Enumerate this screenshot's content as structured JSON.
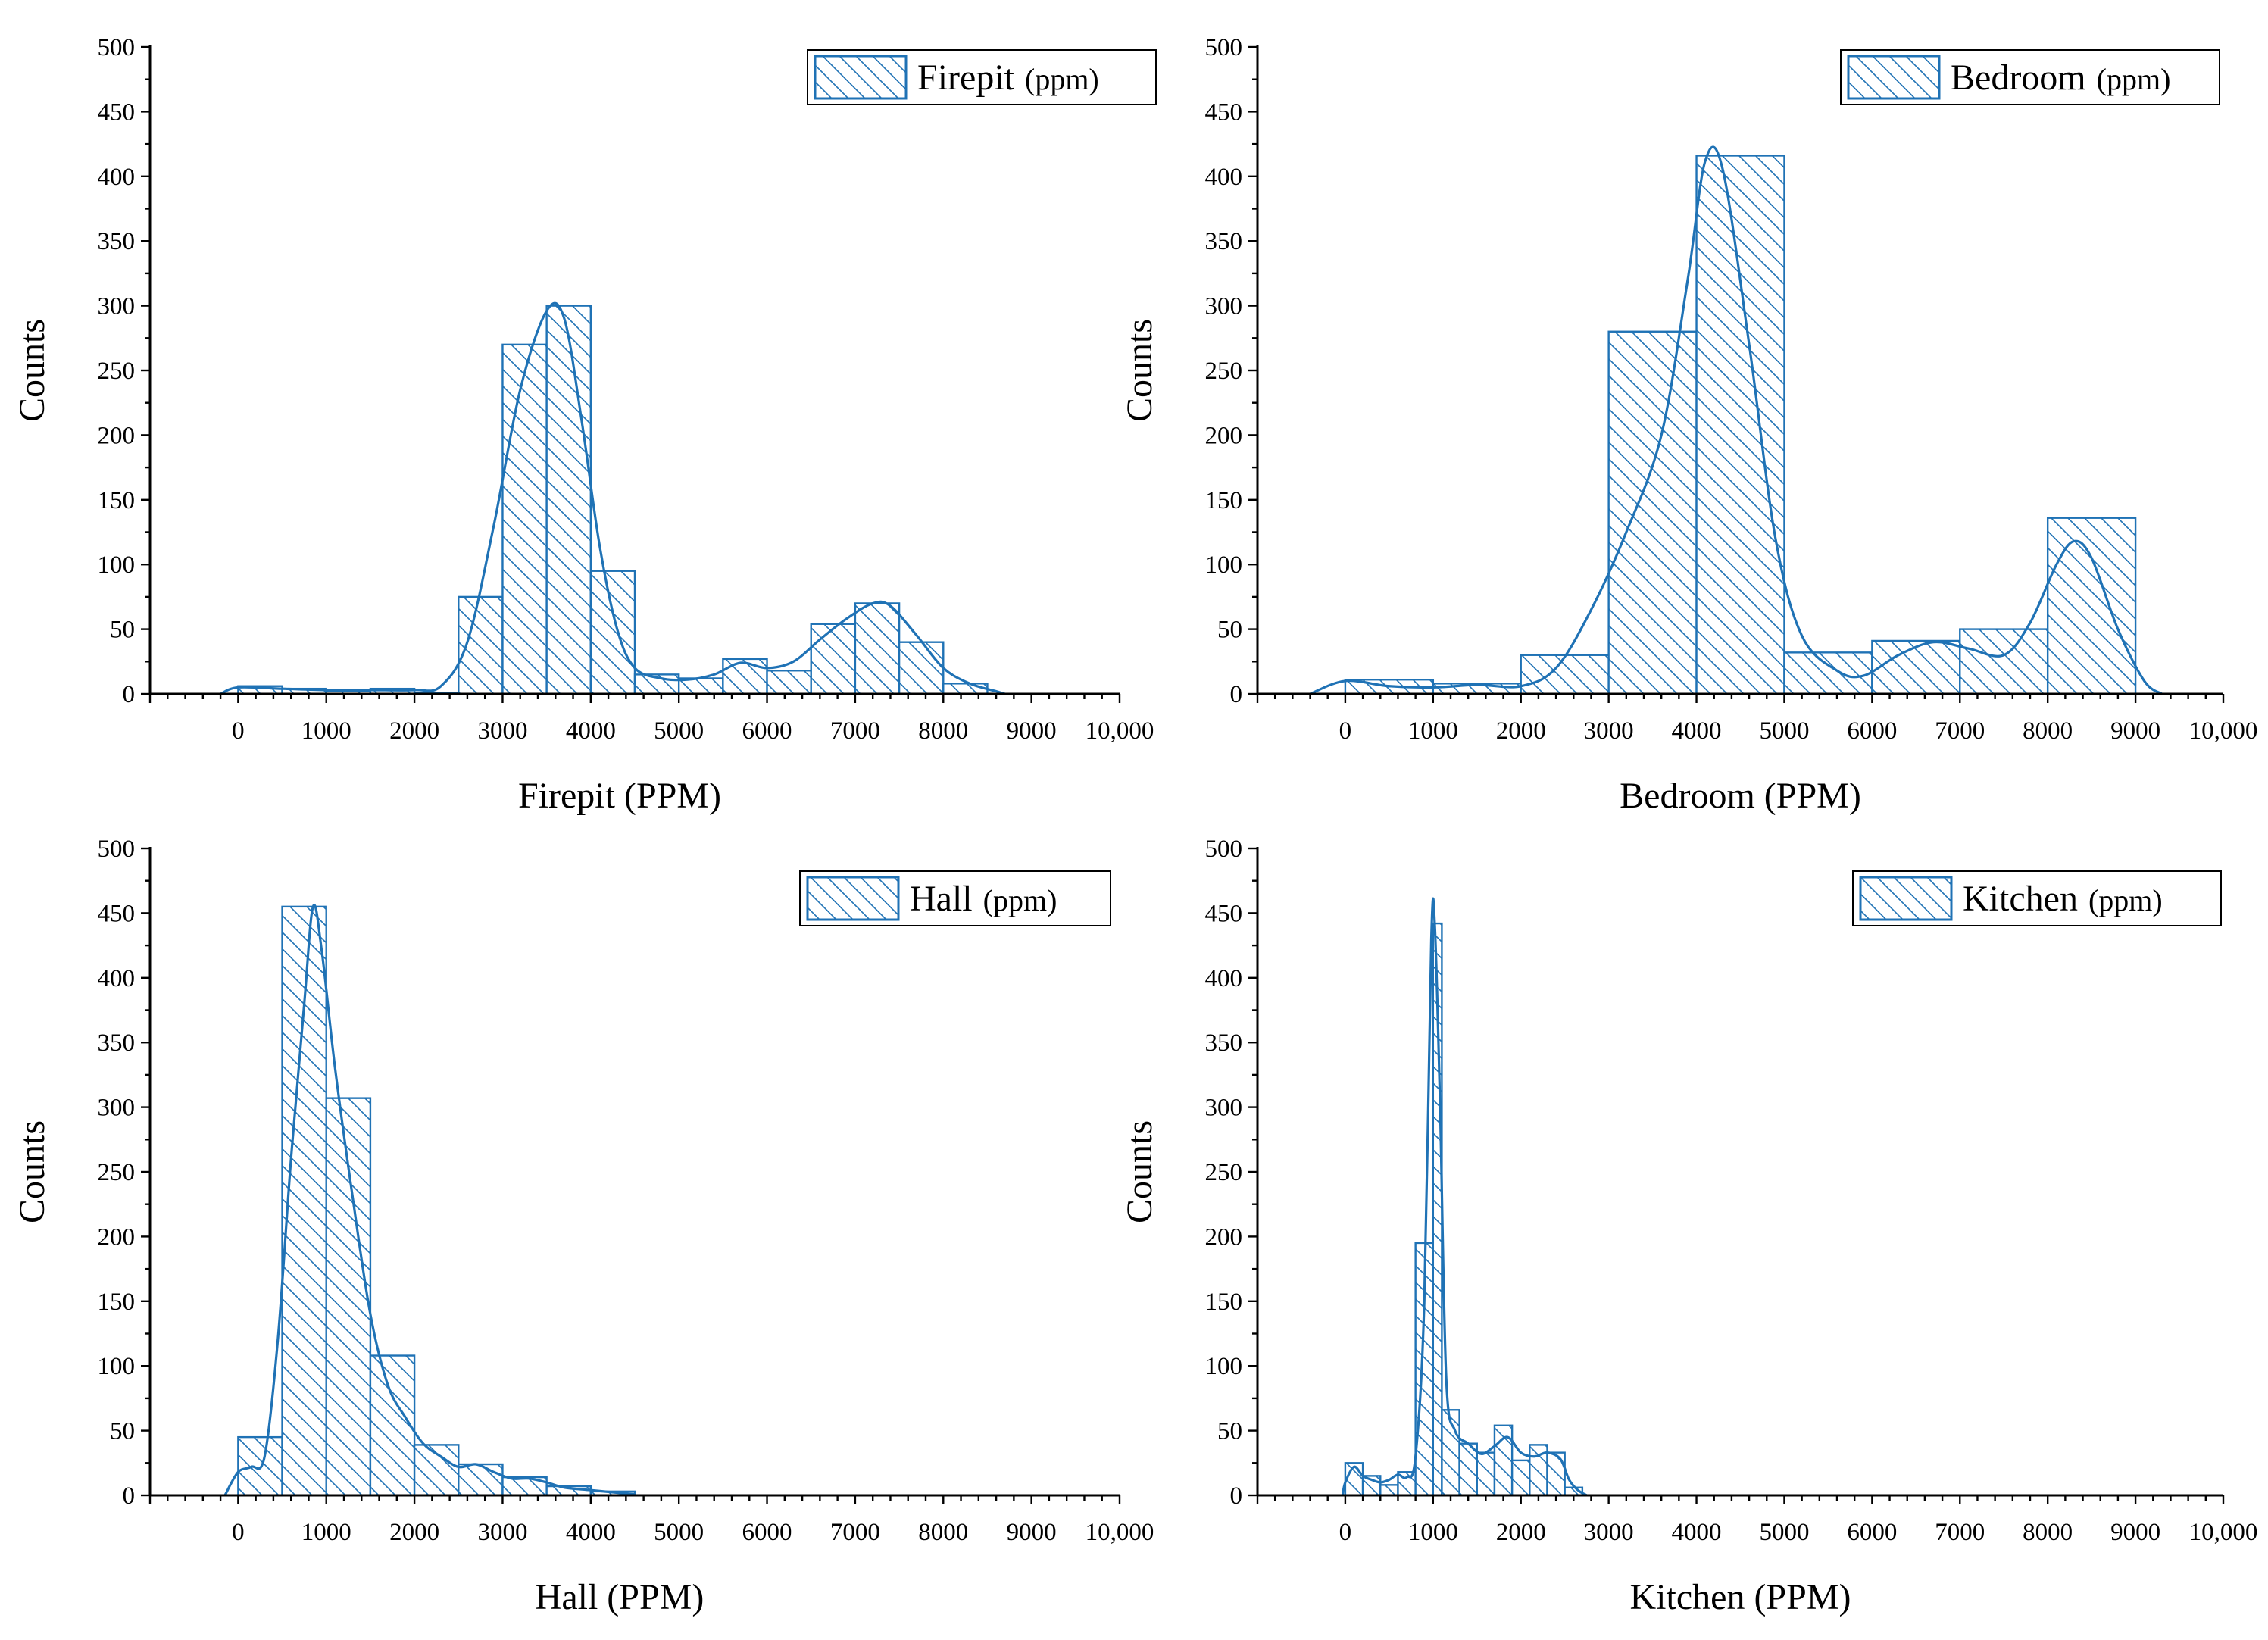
{
  "colors": {
    "series": "#1f72b5",
    "axis": "#000000",
    "background": "#ffffff"
  },
  "chart_data": [
    {
      "type": "bar",
      "subtype": "histogram with kernel density curve",
      "id": "firepit",
      "legend": {
        "label": "Firepit",
        "unit": "(ppm)",
        "position": "top-right"
      },
      "xlabel": "Firepit (PPM)",
      "ylabel": "Counts",
      "xlim": [
        -1000,
        10000
      ],
      "ylim": [
        0,
        500
      ],
      "xticks": [
        "0",
        "1000",
        "2000",
        "3000",
        "4000",
        "5000",
        "6000",
        "7000",
        "8000",
        "9000",
        "10,000"
      ],
      "yticks": [
        "0",
        "50",
        "100",
        "150",
        "200",
        "250",
        "300",
        "350",
        "400",
        "450",
        "500"
      ],
      "bins": [
        {
          "start": 0,
          "end": 500,
          "count": 6
        },
        {
          "start": 500,
          "end": 1000,
          "count": 4
        },
        {
          "start": 1000,
          "end": 1500,
          "count": 2
        },
        {
          "start": 1500,
          "end": 2000,
          "count": 4
        },
        {
          "start": 2000,
          "end": 2500,
          "count": 1
        },
        {
          "start": 2500,
          "end": 3000,
          "count": 75
        },
        {
          "start": 3000,
          "end": 3500,
          "count": 270
        },
        {
          "start": 3500,
          "end": 4000,
          "count": 300
        },
        {
          "start": 4000,
          "end": 4500,
          "count": 95
        },
        {
          "start": 4500,
          "end": 5000,
          "count": 15
        },
        {
          "start": 5000,
          "end": 5500,
          "count": 12
        },
        {
          "start": 5500,
          "end": 6000,
          "count": 27
        },
        {
          "start": 6000,
          "end": 6500,
          "count": 18
        },
        {
          "start": 6500,
          "end": 7000,
          "count": 54
        },
        {
          "start": 7000,
          "end": 7500,
          "count": 70
        },
        {
          "start": 7500,
          "end": 8000,
          "count": 40
        },
        {
          "start": 8000,
          "end": 8500,
          "count": 8
        }
      ],
      "curve": [
        [
          -200,
          0
        ],
        [
          0,
          5
        ],
        [
          500,
          4
        ],
        [
          1000,
          3
        ],
        [
          1500,
          3
        ],
        [
          2000,
          3
        ],
        [
          2300,
          6
        ],
        [
          2600,
          40
        ],
        [
          2900,
          130
        ],
        [
          3200,
          235
        ],
        [
          3500,
          296
        ],
        [
          3700,
          290
        ],
        [
          3900,
          210
        ],
        [
          4100,
          115
        ],
        [
          4300,
          50
        ],
        [
          4500,
          20
        ],
        [
          4800,
          12
        ],
        [
          5100,
          11
        ],
        [
          5400,
          15
        ],
        [
          5700,
          24
        ],
        [
          6000,
          20
        ],
        [
          6300,
          25
        ],
        [
          6600,
          42
        ],
        [
          6900,
          58
        ],
        [
          7200,
          70
        ],
        [
          7400,
          68
        ],
        [
          7700,
          45
        ],
        [
          8000,
          20
        ],
        [
          8300,
          8
        ],
        [
          8600,
          2
        ],
        [
          8700,
          0
        ]
      ]
    },
    {
      "type": "bar",
      "subtype": "histogram with kernel density curve",
      "id": "bedroom",
      "legend": {
        "label": "Bedroom",
        "unit": "(ppm)",
        "position": "top-right"
      },
      "xlabel": "Bedroom (PPM)",
      "ylabel": "Counts",
      "xlim": [
        -1000,
        10000
      ],
      "ylim": [
        0,
        500
      ],
      "xticks": [
        "0",
        "1000",
        "2000",
        "3000",
        "4000",
        "5000",
        "6000",
        "7000",
        "8000",
        "9000",
        "10,000"
      ],
      "yticks": [
        "0",
        "50",
        "100",
        "150",
        "200",
        "250",
        "300",
        "350",
        "400",
        "450",
        "500"
      ],
      "bins": [
        {
          "start": 0,
          "end": 1000,
          "count": 11
        },
        {
          "start": 1000,
          "end": 2000,
          "count": 8
        },
        {
          "start": 2000,
          "end": 3000,
          "count": 30
        },
        {
          "start": 3000,
          "end": 4000,
          "count": 280
        },
        {
          "start": 4000,
          "end": 5000,
          "count": 416
        },
        {
          "start": 5000,
          "end": 6000,
          "count": 32
        },
        {
          "start": 6000,
          "end": 7000,
          "count": 41
        },
        {
          "start": 7000,
          "end": 8000,
          "count": 50
        },
        {
          "start": 8000,
          "end": 9000,
          "count": 136
        }
      ],
      "curve": [
        [
          -400,
          0
        ],
        [
          0,
          10
        ],
        [
          500,
          6
        ],
        [
          1000,
          5
        ],
        [
          1500,
          7
        ],
        [
          2000,
          6
        ],
        [
          2400,
          20
        ],
        [
          2800,
          65
        ],
        [
          3200,
          125
        ],
        [
          3600,
          200
        ],
        [
          3900,
          320
        ],
        [
          4100,
          412
        ],
        [
          4300,
          405
        ],
        [
          4600,
          270
        ],
        [
          4900,
          120
        ],
        [
          5200,
          45
        ],
        [
          5600,
          18
        ],
        [
          5900,
          14
        ],
        [
          6300,
          30
        ],
        [
          6700,
          40
        ],
        [
          7100,
          35
        ],
        [
          7500,
          30
        ],
        [
          7800,
          55
        ],
        [
          8100,
          100
        ],
        [
          8300,
          118
        ],
        [
          8500,
          105
        ],
        [
          8800,
          50
        ],
        [
          9100,
          10
        ],
        [
          9300,
          0
        ]
      ]
    },
    {
      "type": "bar",
      "subtype": "histogram with kernel density curve",
      "id": "hall",
      "legend": {
        "label": "Hall",
        "unit": "(ppm)",
        "position": "top-right"
      },
      "xlabel": "Hall (PPM)",
      "ylabel": "Counts",
      "xlim": [
        -1000,
        10000
      ],
      "ylim": [
        0,
        500
      ],
      "xticks": [
        "0",
        "1000",
        "2000",
        "3000",
        "4000",
        "5000",
        "6000",
        "7000",
        "8000",
        "9000",
        "10,000"
      ],
      "yticks": [
        "0",
        "50",
        "100",
        "150",
        "200",
        "250",
        "300",
        "350",
        "400",
        "450",
        "500"
      ],
      "bins": [
        {
          "start": 0,
          "end": 500,
          "count": 45
        },
        {
          "start": 500,
          "end": 1000,
          "count": 455
        },
        {
          "start": 1000,
          "end": 1500,
          "count": 307
        },
        {
          "start": 1500,
          "end": 2000,
          "count": 108
        },
        {
          "start": 2000,
          "end": 2500,
          "count": 39
        },
        {
          "start": 2500,
          "end": 3000,
          "count": 24
        },
        {
          "start": 3000,
          "end": 3500,
          "count": 14
        },
        {
          "start": 3500,
          "end": 4000,
          "count": 7
        },
        {
          "start": 4000,
          "end": 4500,
          "count": 3
        }
      ],
      "curve": [
        [
          -150,
          0
        ],
        [
          0,
          18
        ],
        [
          150,
          22
        ],
        [
          300,
          30
        ],
        [
          450,
          120
        ],
        [
          600,
          260
        ],
        [
          750,
          380
        ],
        [
          850,
          455
        ],
        [
          950,
          420
        ],
        [
          1100,
          330
        ],
        [
          1300,
          230
        ],
        [
          1500,
          140
        ],
        [
          1700,
          85
        ],
        [
          1900,
          60
        ],
        [
          2100,
          40
        ],
        [
          2300,
          30
        ],
        [
          2500,
          22
        ],
        [
          2700,
          24
        ],
        [
          2900,
          18
        ],
        [
          3100,
          13
        ],
        [
          3300,
          13
        ],
        [
          3500,
          10
        ],
        [
          3700,
          6
        ],
        [
          4000,
          4
        ],
        [
          4300,
          2
        ],
        [
          4500,
          1
        ]
      ]
    },
    {
      "type": "bar",
      "subtype": "histogram with kernel density curve",
      "id": "kitchen",
      "legend": {
        "label": "Kitchen",
        "unit": "(ppm)",
        "position": "top-right"
      },
      "xlabel": "Kitchen (PPM)",
      "ylabel": "Counts",
      "xlim": [
        -1000,
        10000
      ],
      "ylim": [
        0,
        500
      ],
      "xticks": [
        "0",
        "1000",
        "2000",
        "3000",
        "4000",
        "5000",
        "6000",
        "7000",
        "8000",
        "9000",
        "10,000"
      ],
      "yticks": [
        "0",
        "50",
        "100",
        "150",
        "200",
        "250",
        "300",
        "350",
        "400",
        "450",
        "500"
      ],
      "bins": [
        {
          "start": 0,
          "end": 200,
          "count": 25
        },
        {
          "start": 200,
          "end": 400,
          "count": 15
        },
        {
          "start": 400,
          "end": 600,
          "count": 8
        },
        {
          "start": 600,
          "end": 800,
          "count": 18
        },
        {
          "start": 800,
          "end": 1000,
          "count": 195
        },
        {
          "start": 1000,
          "end": 1100,
          "count": 442
        },
        {
          "start": 1100,
          "end": 1300,
          "count": 66
        },
        {
          "start": 1300,
          "end": 1500,
          "count": 40
        },
        {
          "start": 1500,
          "end": 1700,
          "count": 33
        },
        {
          "start": 1700,
          "end": 1900,
          "count": 54
        },
        {
          "start": 1900,
          "end": 2100,
          "count": 27
        },
        {
          "start": 2100,
          "end": 2300,
          "count": 39
        },
        {
          "start": 2300,
          "end": 2500,
          "count": 33
        },
        {
          "start": 2500,
          "end": 2700,
          "count": 6
        }
      ],
      "curve": [
        [
          -30,
          0
        ],
        [
          0,
          10
        ],
        [
          100,
          22
        ],
        [
          200,
          15
        ],
        [
          300,
          12
        ],
        [
          400,
          10
        ],
        [
          500,
          12
        ],
        [
          600,
          16
        ],
        [
          700,
          14
        ],
        [
          800,
          30
        ],
        [
          900,
          150
        ],
        [
          980,
          430
        ],
        [
          1020,
          440
        ],
        [
          1080,
          300
        ],
        [
          1150,
          90
        ],
        [
          1250,
          50
        ],
        [
          1400,
          40
        ],
        [
          1550,
          32
        ],
        [
          1700,
          38
        ],
        [
          1850,
          45
        ],
        [
          2000,
          33
        ],
        [
          2150,
          30
        ],
        [
          2300,
          33
        ],
        [
          2450,
          28
        ],
        [
          2550,
          12
        ],
        [
          2650,
          4
        ],
        [
          2750,
          0
        ]
      ]
    }
  ]
}
